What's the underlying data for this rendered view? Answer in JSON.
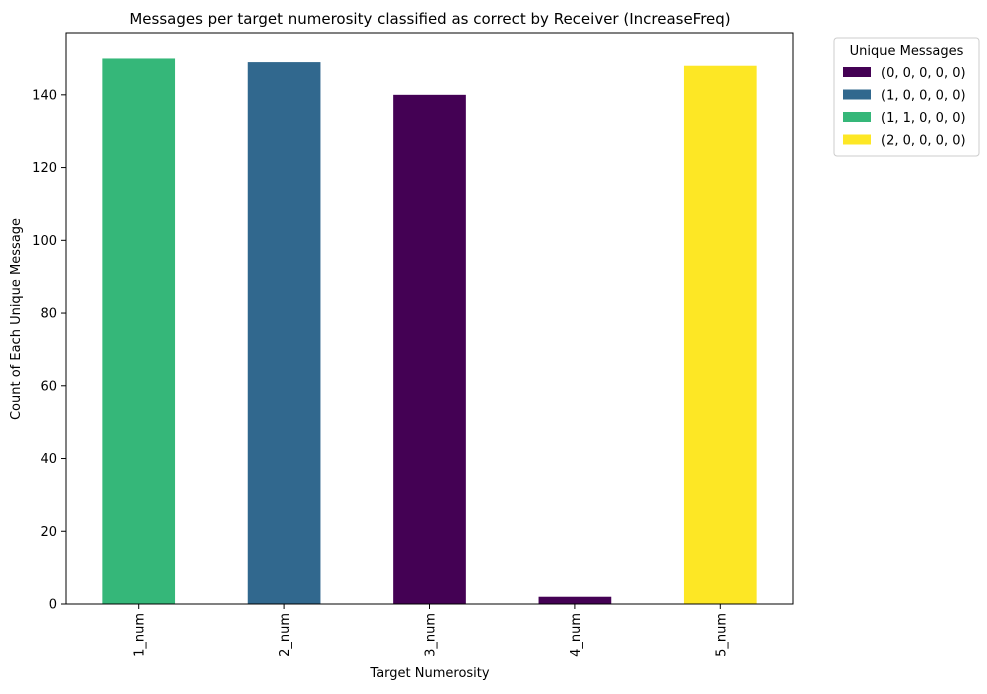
{
  "chart_data": {
    "type": "bar",
    "stacked": true,
    "title": "Messages per target numerosity classified as correct by Receiver (IncreaseFreq)",
    "xlabel": "Target Numerosity",
    "ylabel": "Count of Each Unique Message",
    "categories": [
      "1_num",
      "2_num",
      "3_num",
      "4_num",
      "5_num"
    ],
    "ylim": [
      0,
      157
    ],
    "yticks": [
      0,
      20,
      40,
      60,
      80,
      100,
      120,
      140
    ],
    "grid": false,
    "legend": {
      "title": "Unique Messages",
      "placement": "outside-top-right"
    },
    "series": [
      {
        "name": "(0, 0, 0, 0, 0)",
        "color": "#440154",
        "values": [
          0,
          0,
          140,
          2,
          0
        ]
      },
      {
        "name": "(1, 0, 0, 0, 0)",
        "color": "#31688e",
        "values": [
          0,
          149,
          0,
          0,
          0
        ]
      },
      {
        "name": "(1, 1, 0, 0, 0)",
        "color": "#35b779",
        "values": [
          150,
          0,
          0,
          0,
          0
        ]
      },
      {
        "name": "(2, 0, 0, 0, 0)",
        "color": "#fde725",
        "values": [
          0,
          0,
          0,
          0,
          148
        ]
      }
    ]
  }
}
